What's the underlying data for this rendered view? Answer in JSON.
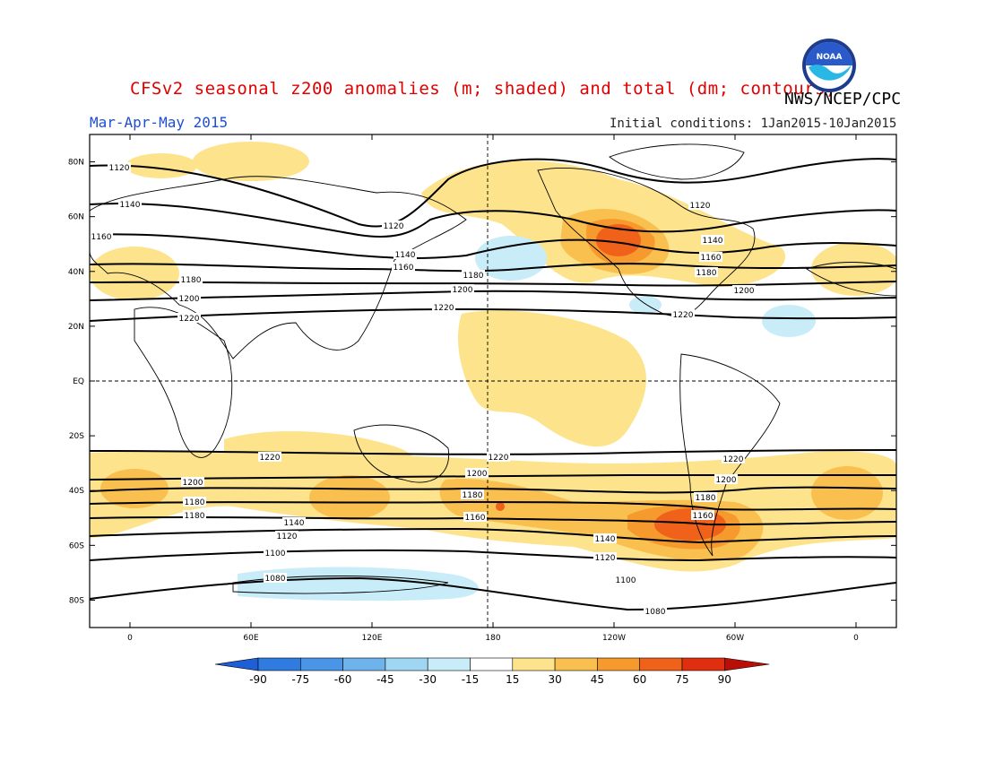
{
  "title": "CFSv2 seasonal z200 anomalies (m; shaded) and total (dm; contours)",
  "agency": "NWS/NCEP/CPC",
  "logo_text": "NOAA",
  "season": "Mar-Apr-May 2015",
  "initial_conditions": "Initial conditions: 1Jan2015-10Jan2015",
  "axes": {
    "lat_labels": [
      "80N",
      "60N",
      "40N",
      "20N",
      "EQ",
      "20S",
      "40S",
      "60S",
      "80S"
    ],
    "lat_values": [
      80,
      60,
      40,
      20,
      0,
      -20,
      -40,
      -60,
      -80
    ],
    "lon_labels": [
      "0",
      "60E",
      "120E",
      "180",
      "120W",
      "60W",
      "0"
    ],
    "lon_values": [
      0,
      60,
      120,
      180,
      240,
      300,
      360
    ],
    "lon_range": [
      -20,
      380
    ],
    "lat_range": [
      -90,
      90
    ]
  },
  "colorbar": {
    "levels": [
      "-90",
      "-75",
      "-60",
      "-45",
      "-30",
      "-15",
      "15",
      "30",
      "45",
      "60",
      "75",
      "90"
    ],
    "colors": [
      "#1e5fd8",
      "#2f7be0",
      "#4a95e6",
      "#6fb3ec",
      "#9fd6f2",
      "#c8ecf8",
      "#ffffff",
      "#fde48c",
      "#f9c050",
      "#f69a2e",
      "#f0621a",
      "#e02e10",
      "#b81008"
    ]
  },
  "contour_levels": [
    "1080",
    "1100",
    "1120",
    "1140",
    "1160",
    "1180",
    "1200",
    "1220"
  ],
  "colors": {
    "title": "#e00000",
    "season": "#1f4fd0",
    "land": "#000000"
  }
}
